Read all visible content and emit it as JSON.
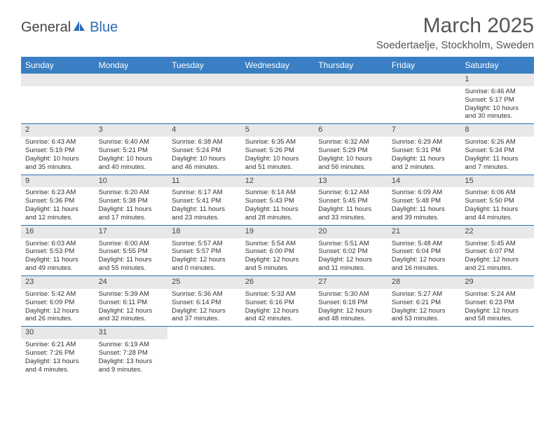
{
  "header": {
    "logo_general": "General",
    "logo_blue": "Blue",
    "month_title": "March 2025",
    "location": "Soedertaelje, Stockholm, Sweden"
  },
  "colors": {
    "header_bg": "#3a7fc4",
    "header_text": "#ffffff",
    "daynum_bg": "#e8e8e8",
    "border": "#2a6db8",
    "text": "#333333",
    "title_text": "#555555"
  },
  "day_names": [
    "Sunday",
    "Monday",
    "Tuesday",
    "Wednesday",
    "Thursday",
    "Friday",
    "Saturday"
  ],
  "weeks": [
    [
      null,
      null,
      null,
      null,
      null,
      null,
      {
        "n": "1",
        "sr": "Sunrise: 6:46 AM",
        "ss": "Sunset: 5:17 PM",
        "d1": "Daylight: 10 hours",
        "d2": "and 30 minutes."
      }
    ],
    [
      {
        "n": "2",
        "sr": "Sunrise: 6:43 AM",
        "ss": "Sunset: 5:19 PM",
        "d1": "Daylight: 10 hours",
        "d2": "and 35 minutes."
      },
      {
        "n": "3",
        "sr": "Sunrise: 6:40 AM",
        "ss": "Sunset: 5:21 PM",
        "d1": "Daylight: 10 hours",
        "d2": "and 40 minutes."
      },
      {
        "n": "4",
        "sr": "Sunrise: 6:38 AM",
        "ss": "Sunset: 5:24 PM",
        "d1": "Daylight: 10 hours",
        "d2": "and 46 minutes."
      },
      {
        "n": "5",
        "sr": "Sunrise: 6:35 AM",
        "ss": "Sunset: 5:26 PM",
        "d1": "Daylight: 10 hours",
        "d2": "and 51 minutes."
      },
      {
        "n": "6",
        "sr": "Sunrise: 6:32 AM",
        "ss": "Sunset: 5:29 PM",
        "d1": "Daylight: 10 hours",
        "d2": "and 56 minutes."
      },
      {
        "n": "7",
        "sr": "Sunrise: 6:29 AM",
        "ss": "Sunset: 5:31 PM",
        "d1": "Daylight: 11 hours",
        "d2": "and 2 minutes."
      },
      {
        "n": "8",
        "sr": "Sunrise: 6:26 AM",
        "ss": "Sunset: 5:34 PM",
        "d1": "Daylight: 11 hours",
        "d2": "and 7 minutes."
      }
    ],
    [
      {
        "n": "9",
        "sr": "Sunrise: 6:23 AM",
        "ss": "Sunset: 5:36 PM",
        "d1": "Daylight: 11 hours",
        "d2": "and 12 minutes."
      },
      {
        "n": "10",
        "sr": "Sunrise: 6:20 AM",
        "ss": "Sunset: 5:38 PM",
        "d1": "Daylight: 11 hours",
        "d2": "and 17 minutes."
      },
      {
        "n": "11",
        "sr": "Sunrise: 6:17 AM",
        "ss": "Sunset: 5:41 PM",
        "d1": "Daylight: 11 hours",
        "d2": "and 23 minutes."
      },
      {
        "n": "12",
        "sr": "Sunrise: 6:14 AM",
        "ss": "Sunset: 5:43 PM",
        "d1": "Daylight: 11 hours",
        "d2": "and 28 minutes."
      },
      {
        "n": "13",
        "sr": "Sunrise: 6:12 AM",
        "ss": "Sunset: 5:45 PM",
        "d1": "Daylight: 11 hours",
        "d2": "and 33 minutes."
      },
      {
        "n": "14",
        "sr": "Sunrise: 6:09 AM",
        "ss": "Sunset: 5:48 PM",
        "d1": "Daylight: 11 hours",
        "d2": "and 39 minutes."
      },
      {
        "n": "15",
        "sr": "Sunrise: 6:06 AM",
        "ss": "Sunset: 5:50 PM",
        "d1": "Daylight: 11 hours",
        "d2": "and 44 minutes."
      }
    ],
    [
      {
        "n": "16",
        "sr": "Sunrise: 6:03 AM",
        "ss": "Sunset: 5:53 PM",
        "d1": "Daylight: 11 hours",
        "d2": "and 49 minutes."
      },
      {
        "n": "17",
        "sr": "Sunrise: 6:00 AM",
        "ss": "Sunset: 5:55 PM",
        "d1": "Daylight: 11 hours",
        "d2": "and 55 minutes."
      },
      {
        "n": "18",
        "sr": "Sunrise: 5:57 AM",
        "ss": "Sunset: 5:57 PM",
        "d1": "Daylight: 12 hours",
        "d2": "and 0 minutes."
      },
      {
        "n": "19",
        "sr": "Sunrise: 5:54 AM",
        "ss": "Sunset: 6:00 PM",
        "d1": "Daylight: 12 hours",
        "d2": "and 5 minutes."
      },
      {
        "n": "20",
        "sr": "Sunrise: 5:51 AM",
        "ss": "Sunset: 6:02 PM",
        "d1": "Daylight: 12 hours",
        "d2": "and 11 minutes."
      },
      {
        "n": "21",
        "sr": "Sunrise: 5:48 AM",
        "ss": "Sunset: 6:04 PM",
        "d1": "Daylight: 12 hours",
        "d2": "and 16 minutes."
      },
      {
        "n": "22",
        "sr": "Sunrise: 5:45 AM",
        "ss": "Sunset: 6:07 PM",
        "d1": "Daylight: 12 hours",
        "d2": "and 21 minutes."
      }
    ],
    [
      {
        "n": "23",
        "sr": "Sunrise: 5:42 AM",
        "ss": "Sunset: 6:09 PM",
        "d1": "Daylight: 12 hours",
        "d2": "and 26 minutes."
      },
      {
        "n": "24",
        "sr": "Sunrise: 5:39 AM",
        "ss": "Sunset: 6:11 PM",
        "d1": "Daylight: 12 hours",
        "d2": "and 32 minutes."
      },
      {
        "n": "25",
        "sr": "Sunrise: 5:36 AM",
        "ss": "Sunset: 6:14 PM",
        "d1": "Daylight: 12 hours",
        "d2": "and 37 minutes."
      },
      {
        "n": "26",
        "sr": "Sunrise: 5:33 AM",
        "ss": "Sunset: 6:16 PM",
        "d1": "Daylight: 12 hours",
        "d2": "and 42 minutes."
      },
      {
        "n": "27",
        "sr": "Sunrise: 5:30 AM",
        "ss": "Sunset: 6:18 PM",
        "d1": "Daylight: 12 hours",
        "d2": "and 48 minutes."
      },
      {
        "n": "28",
        "sr": "Sunrise: 5:27 AM",
        "ss": "Sunset: 6:21 PM",
        "d1": "Daylight: 12 hours",
        "d2": "and 53 minutes."
      },
      {
        "n": "29",
        "sr": "Sunrise: 5:24 AM",
        "ss": "Sunset: 6:23 PM",
        "d1": "Daylight: 12 hours",
        "d2": "and 58 minutes."
      }
    ],
    [
      {
        "n": "30",
        "sr": "Sunrise: 6:21 AM",
        "ss": "Sunset: 7:26 PM",
        "d1": "Daylight: 13 hours",
        "d2": "and 4 minutes."
      },
      {
        "n": "31",
        "sr": "Sunrise: 6:19 AM",
        "ss": "Sunset: 7:28 PM",
        "d1": "Daylight: 13 hours",
        "d2": "and 9 minutes."
      },
      null,
      null,
      null,
      null,
      null
    ]
  ]
}
